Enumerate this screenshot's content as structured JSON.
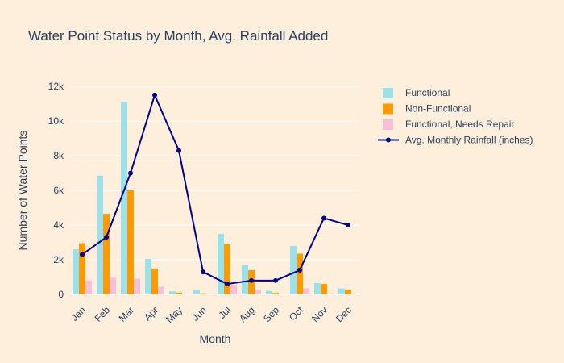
{
  "chart_data": {
    "type": "bar",
    "title": "Water Point Status by Month, Avg. Rainfall Added",
    "xlabel": "Month",
    "ylabel": "Number of Water Points",
    "categories": [
      "Jan",
      "Feb",
      "Mar",
      "Apr",
      "May",
      "Jun",
      "Jul",
      "Aug",
      "Sep",
      "Oct",
      "Nov",
      "Dec"
    ],
    "ylim": [
      0,
      12800
    ],
    "yticks": [
      0,
      2000,
      4000,
      6000,
      8000,
      10000,
      12000
    ],
    "ytick_labels": [
      "0",
      "2k",
      "4k",
      "6k",
      "8k",
      "10k",
      "12k"
    ],
    "grid": true,
    "legend_position": "top-right",
    "series": [
      {
        "name": "Functional",
        "type": "bar",
        "color": "#9ee0e8",
        "values": [
          2600,
          6850,
          11100,
          2050,
          180,
          250,
          3500,
          1700,
          200,
          2800,
          650,
          350
        ]
      },
      {
        "name": "Non-Functional",
        "type": "bar",
        "color": "#ff9900",
        "values": [
          2950,
          4650,
          6000,
          1500,
          100,
          60,
          2900,
          1400,
          80,
          2350,
          600,
          250
        ]
      },
      {
        "name": "Functional, Needs Repair",
        "type": "bar",
        "color": "#f8c0d8",
        "values": [
          800,
          950,
          900,
          450,
          20,
          20,
          550,
          250,
          20,
          350,
          60,
          20
        ]
      },
      {
        "name": "Avg. Monthly Rainfall (inches)",
        "type": "line",
        "color": "#00008b",
        "values": [
          2300,
          3300,
          7000,
          11500,
          8300,
          1300,
          600,
          800,
          800,
          1400,
          4400,
          4000
        ]
      }
    ]
  }
}
